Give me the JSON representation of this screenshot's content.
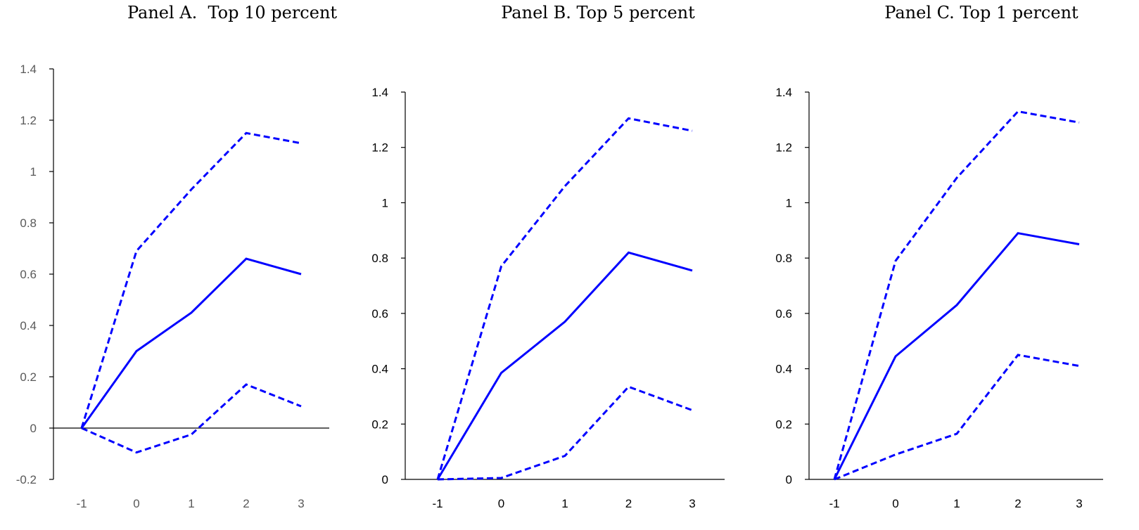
{
  "chart_data": [
    {
      "type": "line",
      "title": "Panel A.  Top 10 percent",
      "x": [
        -1,
        0,
        1,
        2,
        3
      ],
      "xticks": [
        "-1",
        "0",
        "1",
        "2",
        "3"
      ],
      "ylim": [
        -0.2,
        1.4
      ],
      "yticks": [
        "-0.2",
        "0",
        "0.2",
        "0.4",
        "0.6",
        "0.8",
        "1",
        "1.2",
        "1.4"
      ],
      "zero_line": true,
      "tick_color": "#595959",
      "series": [
        {
          "style": "solid",
          "values": [
            0,
            0.3,
            0.45,
            0.66,
            0.6
          ]
        },
        {
          "style": "dashed",
          "values": [
            0,
            0.69,
            0.93,
            1.15,
            1.11
          ]
        },
        {
          "style": "dashed",
          "values": [
            0,
            -0.095,
            -0.025,
            0.17,
            0.085
          ]
        }
      ]
    },
    {
      "type": "line",
      "title": "Panel B. Top 5 percent",
      "x": [
        -1,
        0,
        1,
        2,
        3
      ],
      "xticks": [
        "-1",
        "0",
        "1",
        "2",
        "3"
      ],
      "ylim": [
        0,
        1.4
      ],
      "yticks": [
        "0",
        "0.2",
        "0.4",
        "0.6",
        "0.8",
        "1",
        "1.2",
        "1.4"
      ],
      "zero_line": false,
      "tick_color": "#000000",
      "series": [
        {
          "style": "solid",
          "values": [
            0,
            0.385,
            0.57,
            0.82,
            0.755
          ]
        },
        {
          "style": "dashed",
          "values": [
            0,
            0.77,
            1.06,
            1.305,
            1.26
          ]
        },
        {
          "style": "dashed",
          "values": [
            0,
            0.005,
            0.085,
            0.335,
            0.25
          ]
        }
      ]
    },
    {
      "type": "line",
      "title": "Panel C. Top 1 percent",
      "x": [
        -1,
        0,
        1,
        2,
        3
      ],
      "xticks": [
        "-1",
        "0",
        "1",
        "2",
        "3"
      ],
      "ylim": [
        0,
        1.4
      ],
      "yticks": [
        "0",
        "0.2",
        "0.4",
        "0.6",
        "0.8",
        "1",
        "1.2",
        "1.4"
      ],
      "zero_line": false,
      "tick_color": "#000000",
      "series": [
        {
          "style": "solid",
          "values": [
            0,
            0.445,
            0.63,
            0.89,
            0.85
          ]
        },
        {
          "style": "dashed",
          "values": [
            0,
            0.79,
            1.09,
            1.33,
            1.29
          ]
        },
        {
          "style": "dashed",
          "values": [
            0,
            0.09,
            0.165,
            0.45,
            0.41
          ]
        }
      ]
    }
  ],
  "colors": {
    "series": "#0000ff",
    "axis": "#000000"
  }
}
